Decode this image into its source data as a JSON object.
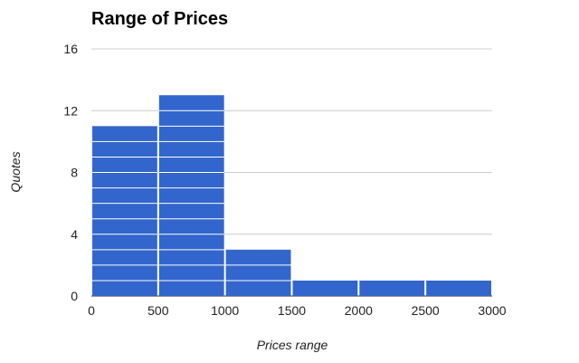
{
  "chart_data": {
    "type": "bar",
    "title": "Range of Prices",
    "xlabel": "Prices range",
    "ylabel": "Quotes",
    "bins": [
      {
        "start": 0,
        "end": 500,
        "value": 11
      },
      {
        "start": 500,
        "end": 1000,
        "value": 13
      },
      {
        "start": 1000,
        "end": 1500,
        "value": 3
      },
      {
        "start": 1500,
        "end": 2000,
        "value": 1
      },
      {
        "start": 2000,
        "end": 2500,
        "value": 1
      },
      {
        "start": 2500,
        "end": 3000,
        "value": 1
      }
    ],
    "xticks": [
      "0",
      "500",
      "1000",
      "1500",
      "2000",
      "2500",
      "3000"
    ],
    "yticks": [
      "0",
      "4",
      "8",
      "12",
      "16"
    ],
    "xlim": [
      0,
      3000
    ],
    "ylim": [
      0,
      16
    ],
    "grid": true,
    "bar_color": "#3366cc"
  }
}
